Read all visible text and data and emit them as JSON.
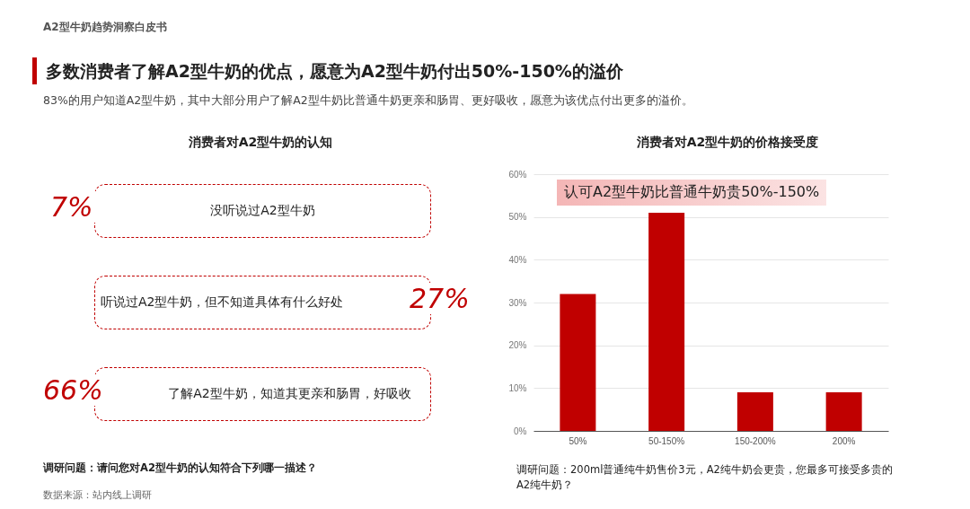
{
  "chart_data": [
    {
      "type": "other",
      "title": "多数消费者了解A2型牛奶的优点，愿意为A2型牛奶付出50%-150%的溢价",
      "subtitle": "83%的用户知道A2型牛奶，其中大部分用户了解A2型牛奶比普通牛奶更亲和肠胃、更好吸收，愿意为该优点付出更多的溢价。",
      "annotations": [
        "A2型牛奶趋势洞察白皮书",
        "数据来源：站内线上调研"
      ]
    },
    {
      "type": "other",
      "title": "消费者对A2型牛奶的认知",
      "categories": [
        "没听说过A2型牛奶",
        "听说过A2型牛奶，但不知道具体有什么好处",
        "了解A2型牛奶，知道其更亲和肠胃，好吸收"
      ],
      "values": [
        7,
        27,
        66
      ],
      "value_labels": [
        "7%",
        "27%",
        "66%"
      ],
      "annotations": [
        "调研问题：请问您对A2型牛奶的认知符合下列哪一描述？"
      ]
    },
    {
      "type": "bar",
      "title": "消费者对A2型牛奶的价格接受度",
      "categories": [
        "50%",
        "50-150%",
        "150-200%",
        "200%"
      ],
      "values": [
        32,
        51,
        9,
        9
      ],
      "color": "#c00000",
      "ylim": [
        0,
        60
      ],
      "yticks": [
        {
          "value": 0,
          "label": "0%"
        },
        {
          "value": 10,
          "label": "10%"
        },
        {
          "value": 20,
          "label": "20%"
        },
        {
          "value": 30,
          "label": "30%"
        },
        {
          "value": 40,
          "label": "40%"
        },
        {
          "value": 50,
          "label": "50%"
        },
        {
          "value": 60,
          "label": "60%"
        }
      ],
      "grid": "y",
      "annotations": [
        "认可A2型牛奶比普通牛奶贵50%-150%",
        "调研问题：200ml普通纯牛奶售价3元，A2纯牛奶会更贵，您最多可接受多贵的A2纯牛奶？"
      ]
    }
  ]
}
